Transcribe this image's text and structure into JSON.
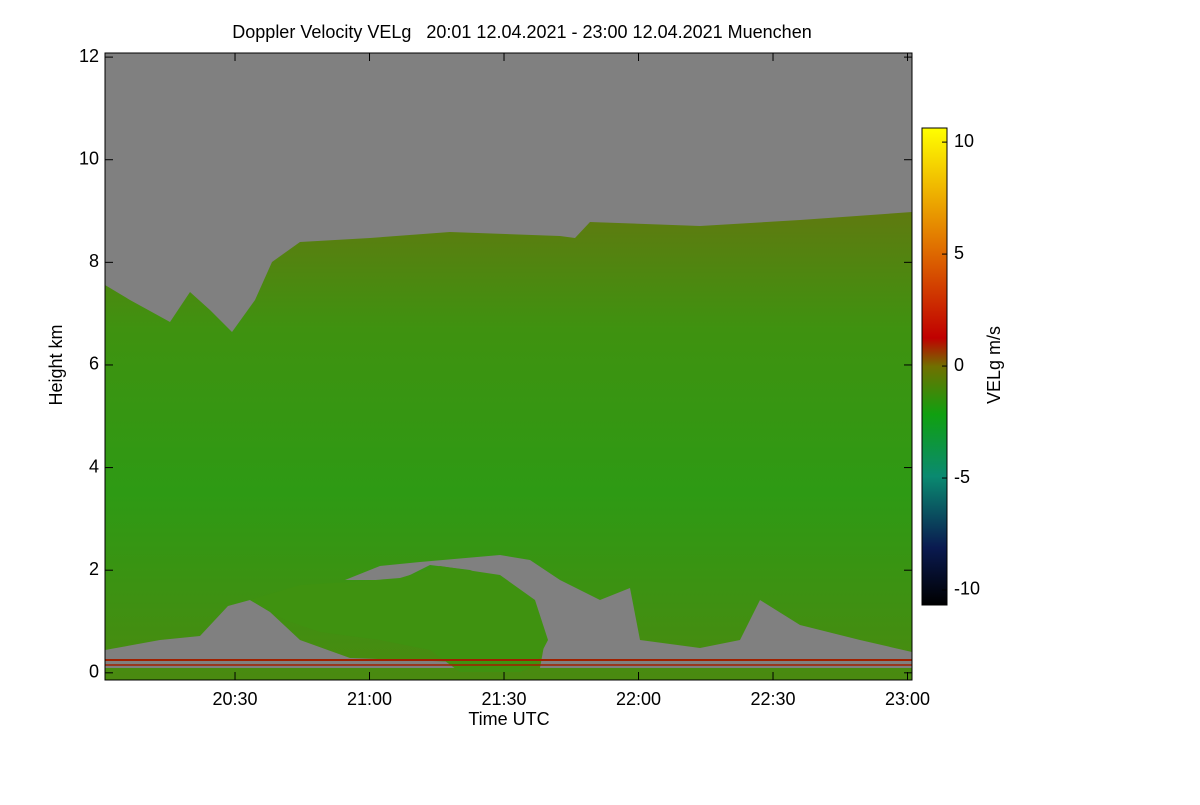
{
  "chart_data": {
    "type": "heatmap",
    "title": "Doppler Velocity VELg   20:01 12.04.2021 - 23:00 12.04.2021 Muenchen",
    "x_label": "Time UTC",
    "y_label": "Height km",
    "colorbar_label": "VELg m/s",
    "xlim": [
      1201,
      1381
    ],
    "xticks": [
      {
        "value": 1230,
        "label": "20:30"
      },
      {
        "value": 1260,
        "label": "21:00"
      },
      {
        "value": 1290,
        "label": "21:30"
      },
      {
        "value": 1320,
        "label": "22:00"
      },
      {
        "value": 1350,
        "label": "22:30"
      },
      {
        "value": 1380,
        "label": "23:00"
      }
    ],
    "ylim": [
      -0.14,
      12.08
    ],
    "yticks": [
      0,
      2,
      4,
      6,
      8,
      10,
      12
    ],
    "clim": [
      -10.67,
      10.63
    ],
    "cticks": [
      -10,
      -5,
      0,
      5,
      10
    ]
  }
}
